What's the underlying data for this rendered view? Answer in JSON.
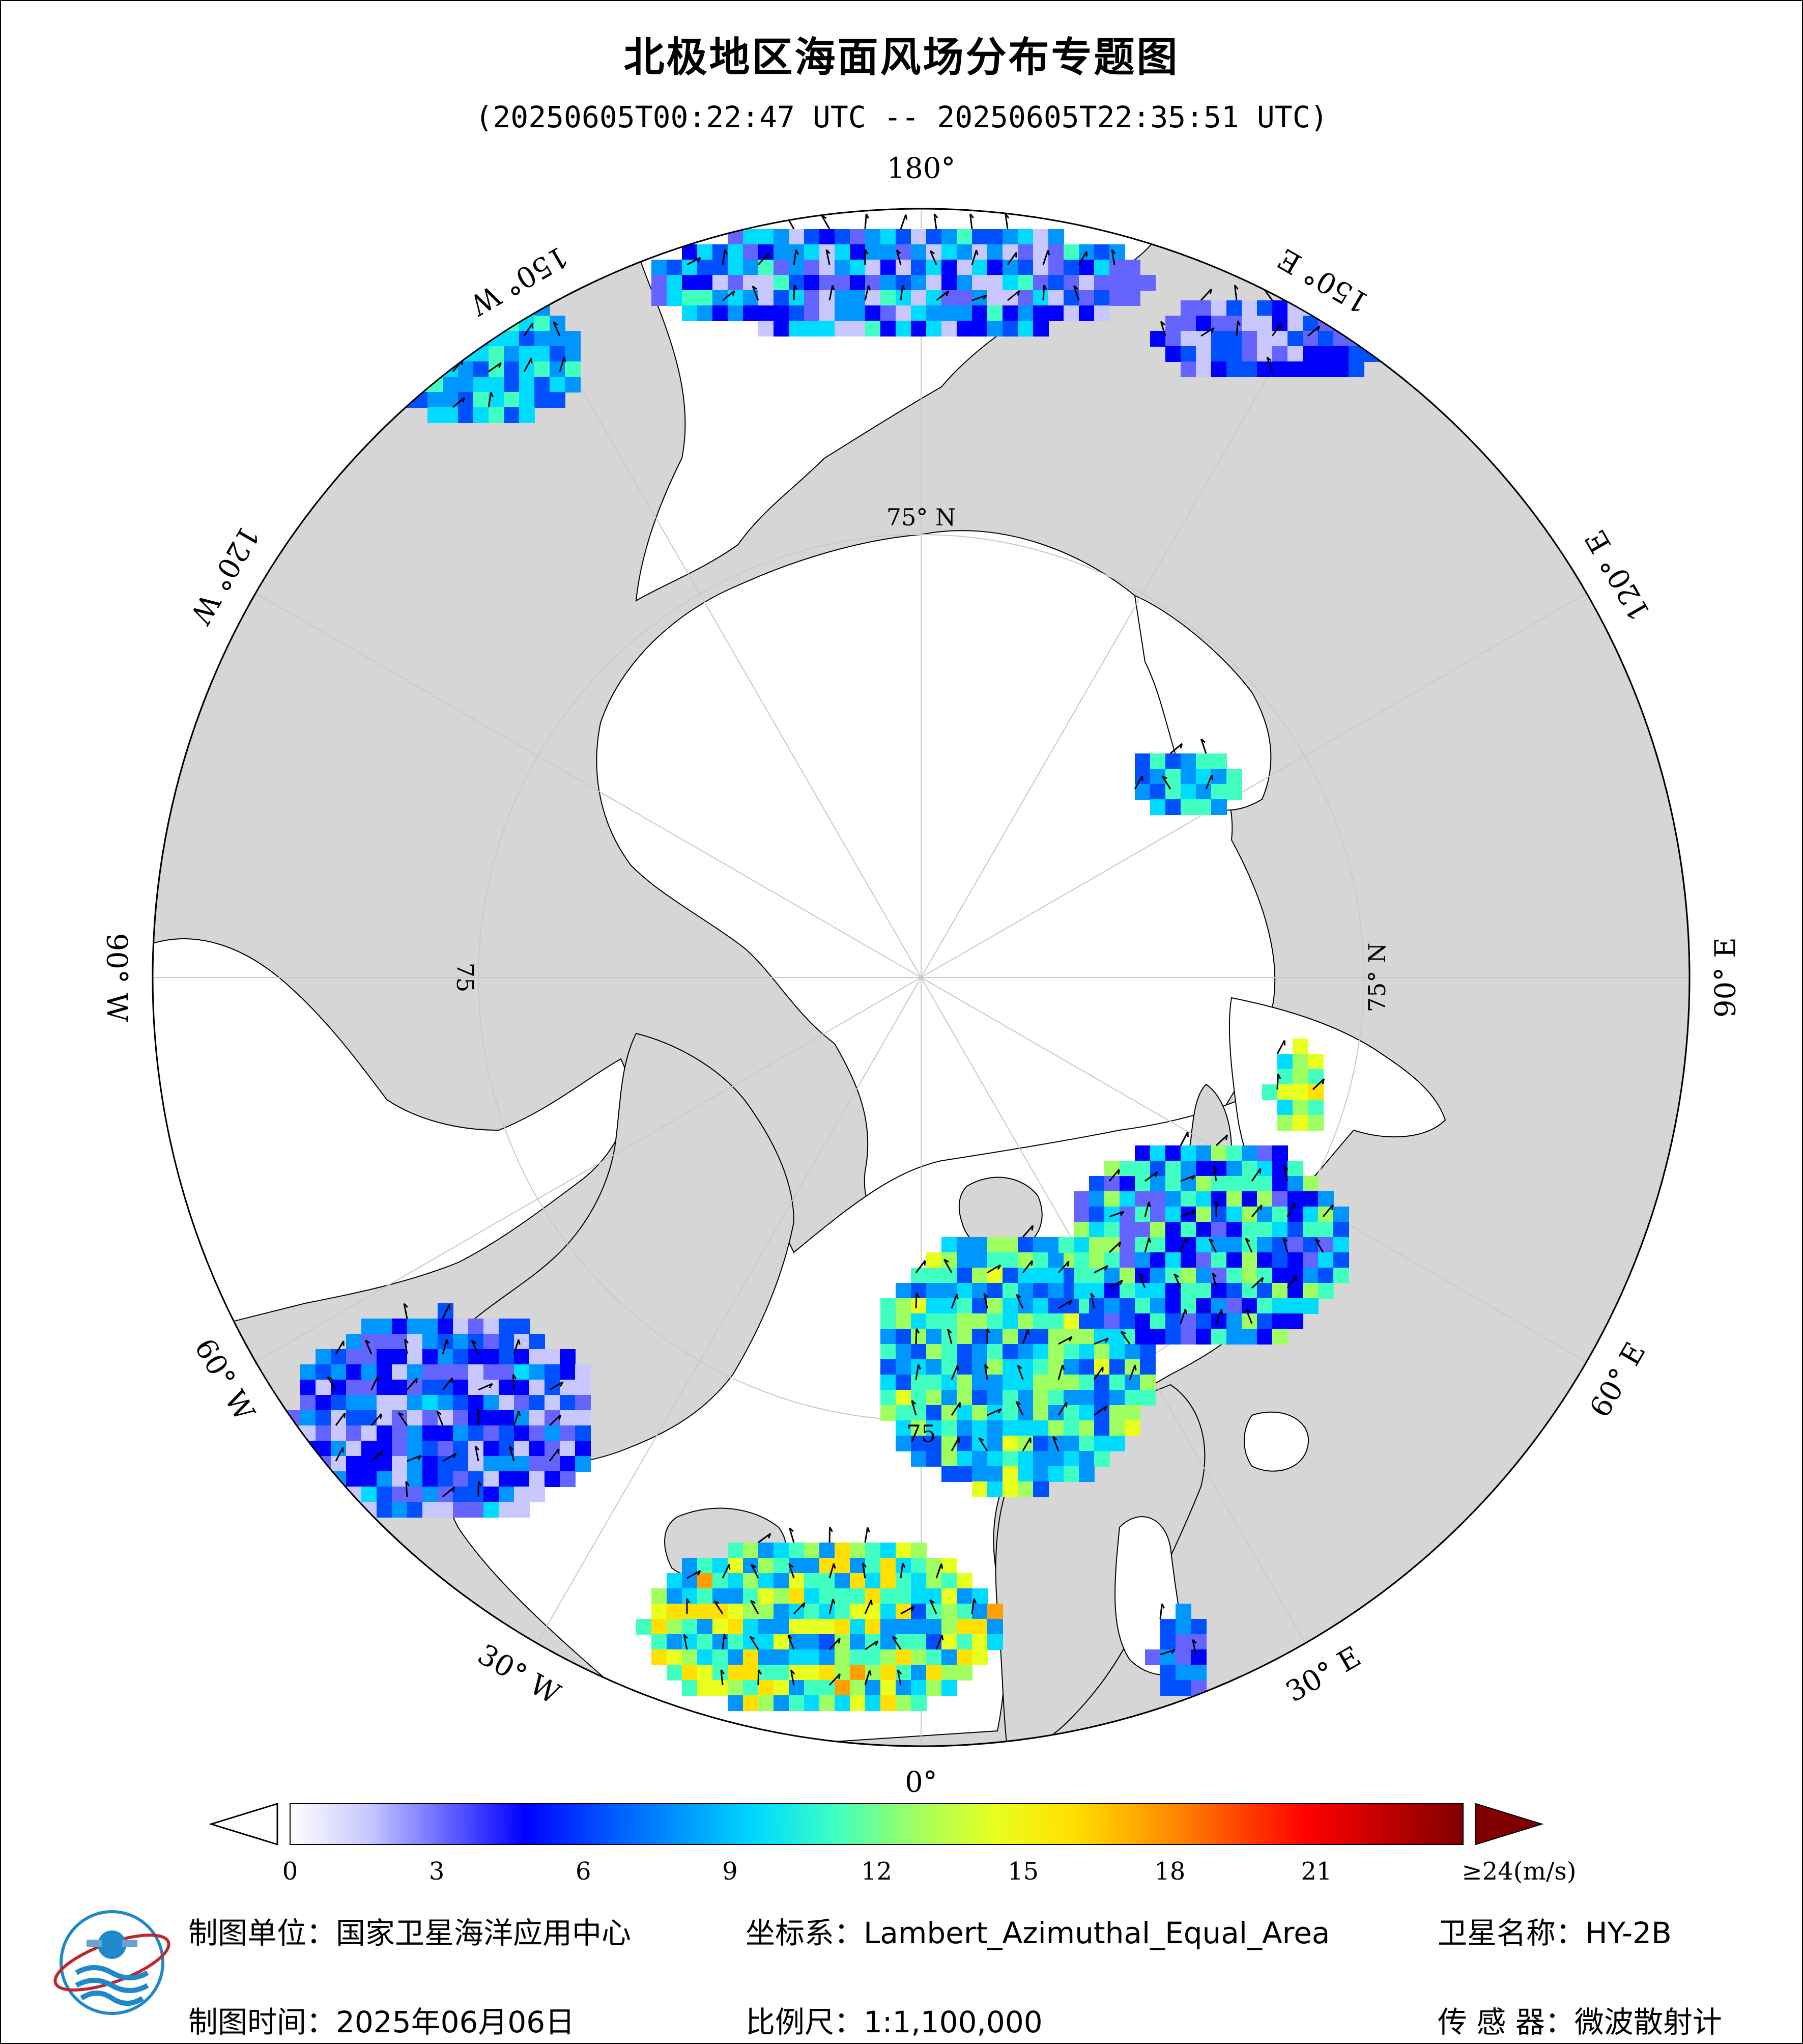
{
  "title": "北极地区海面风场分布专题图",
  "time_range": "(20250605T00:22:47 UTC -- 20250605T22:35:51 UTC)",
  "map": {
    "projection_center": "North Pole",
    "lon_labels": [
      {
        "text": "180°",
        "lon": 180
      },
      {
        "text": "150° E",
        "lon": 150
      },
      {
        "text": "120° E",
        "lon": 120
      },
      {
        "text": "90° E",
        "lon": 90
      },
      {
        "text": "60° E",
        "lon": 60
      },
      {
        "text": "30° E",
        "lon": 30
      },
      {
        "text": "0°",
        "lon": 0
      },
      {
        "text": "30° W",
        "lon": -30
      },
      {
        "text": "60° W",
        "lon": -60
      },
      {
        "text": "90° W",
        "lon": -90
      },
      {
        "text": "120° W",
        "lon": -120
      },
      {
        "text": "150° W",
        "lon": -150
      }
    ],
    "lat_labels": [
      {
        "text": "75° N",
        "lon": 180
      },
      {
        "text": "75° N",
        "lon": 90
      },
      {
        "text": "75",
        "lon": -90
      },
      {
        "text": "75",
        "lon": 0
      }
    ],
    "colors": {
      "ocean_bg": "#ffffff",
      "land": "#d6d6d6",
      "outside": "#d6d6d6",
      "coast": "#000000",
      "graticule": "#c8c8c8"
    }
  },
  "colorbar": {
    "ticks": [
      "0",
      "3",
      "6",
      "9",
      "12",
      "15",
      "18",
      "21",
      "≥24(m/s)"
    ],
    "tick_values": [
      0,
      3,
      6,
      9,
      12,
      15,
      18,
      21,
      24
    ],
    "min": 0,
    "max": 24,
    "unit": "m/s",
    "colors": [
      "#ffffff",
      "#c8c8ff",
      "#6464ff",
      "#0000ff",
      "#0050ff",
      "#0096ff",
      "#00dcff",
      "#40ffc0",
      "#a0ff60",
      "#e8ff20",
      "#ffe000",
      "#ffa000",
      "#ff5000",
      "#ff0000",
      "#c00000",
      "#800000"
    ]
  },
  "footer": {
    "unit_label": "制图单位：国家卫星海洋应用中心",
    "coord_label": "坐标系：Lambert_Azimuthal_Equal_Area",
    "satellite_label": "卫星名称：HY-2B",
    "date_label": "制图时间：2025年06月06日",
    "scale_label": "比例尺：1:1,100,000",
    "sensor_label": "传 感 器：微波散射计"
  },
  "logo": {
    "icon": "nsoas-logo-icon"
  }
}
